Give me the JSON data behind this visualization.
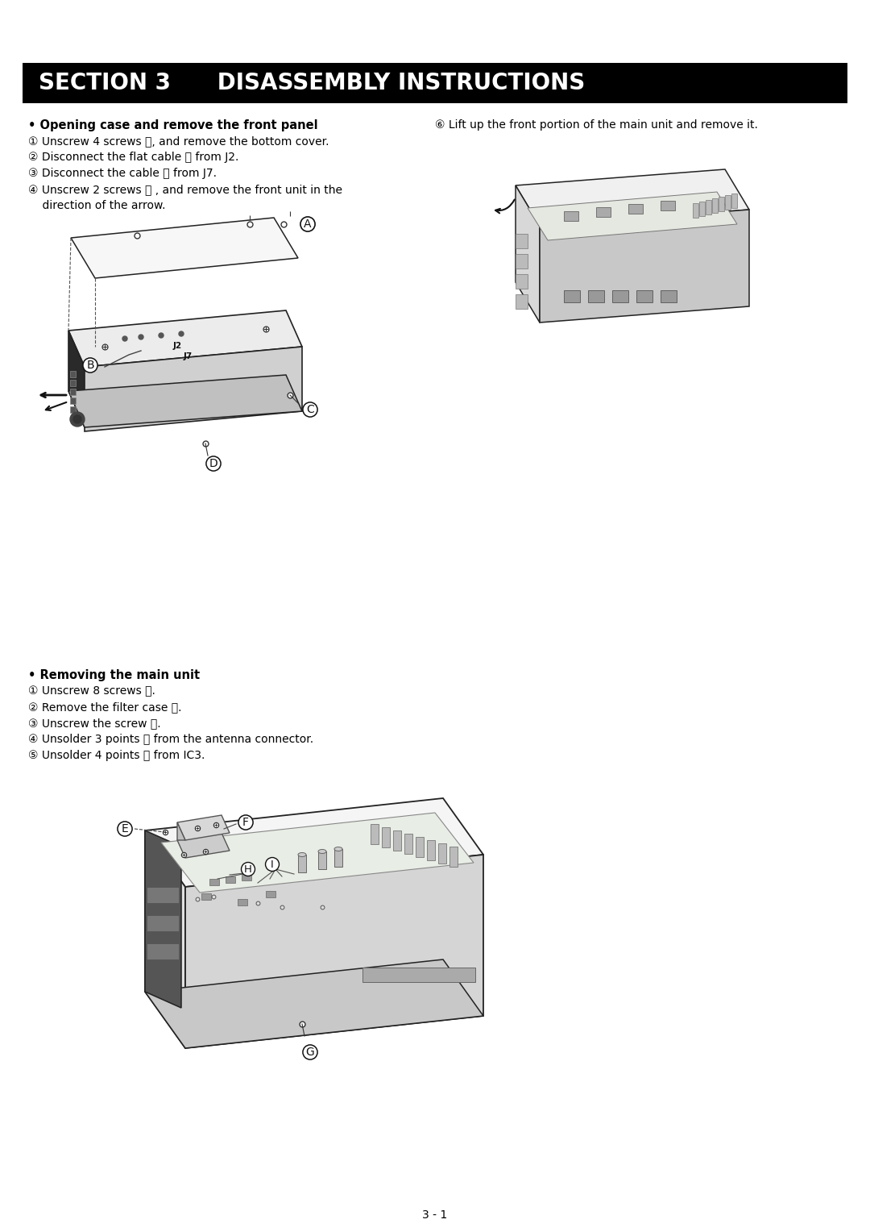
{
  "page_bg": "#ffffff",
  "header_bg": "#000000",
  "header_text_color": "#ffffff",
  "header_text": "SECTION 3      DISASSEMBLY INSTRUCTIONS",
  "header_font_size": 20,
  "body_text_color": "#000000",
  "section1_title": "• Opening case and remove the front panel",
  "section1_steps": [
    "① Unscrew 4 screws Ⓐ, and remove the bottom cover.",
    "② Disconnect the flat cable Ⓑ from J2.",
    "③ Disconnect the cable Ⓒ from J7.",
    "④ Unscrew 2 screws Ⓓ , and remove the front unit in the",
    "    direction of the arrow."
  ],
  "section1_step6": "⑥ Lift up the front portion of the main unit and remove it.",
  "section2_title": "• Removing the main unit",
  "section2_steps": [
    "① Unscrew 8 screws Ⓔ.",
    "② Remove the filter case Ⓕ.",
    "③ Unscrew the screw Ⓖ.",
    "④ Unsolder 3 points Ⓗ from the antenna connector.",
    "⑤ Unsolder 4 points Ⓘ from IC3."
  ],
  "footer_text": "3 - 1",
  "title_font_size": 10.5,
  "step_font_size": 10,
  "step6_font_size": 10
}
